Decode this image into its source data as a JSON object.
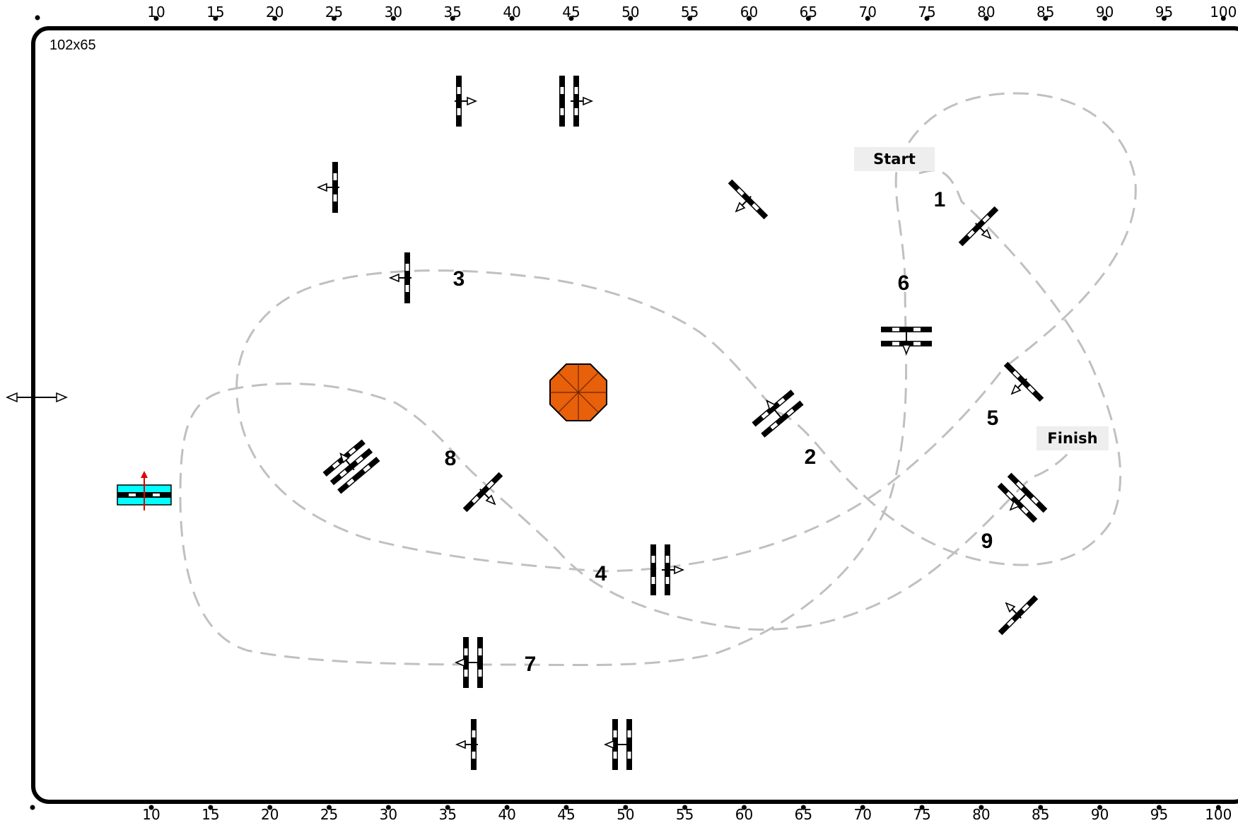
{
  "arena": {
    "size_label": "102x65",
    "scale_ticks": [
      "10",
      "15",
      "20",
      "25",
      "30",
      "35",
      "40",
      "45",
      "50",
      "55",
      "60",
      "65",
      "70",
      "75",
      "80",
      "85",
      "90",
      "95",
      "100"
    ]
  },
  "course": {
    "start_label": "Start",
    "finish_label": "Finish",
    "obstacle_numbers": [
      "1",
      "2",
      "3",
      "4",
      "5",
      "6",
      "7",
      "8",
      "9"
    ]
  },
  "colors": {
    "border": "#000000",
    "path": "#c0c0c0",
    "water_jump": "#00ffff",
    "hedge": "#e8600a",
    "box_bg": "#eeeeee",
    "arrow_red": "#e00000"
  },
  "icons": {
    "pole": "jump-pole-icon",
    "hedge": "octagon-hedge-icon",
    "water": "water-jump-icon",
    "entrance": "double-arrow-icon"
  }
}
